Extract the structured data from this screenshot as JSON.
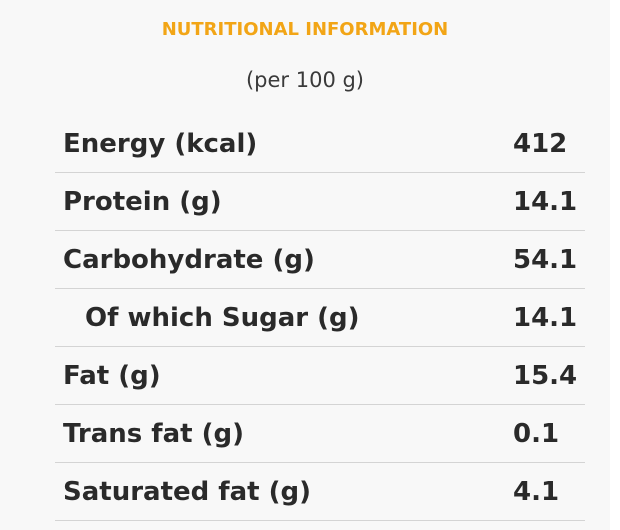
{
  "title": "NUTRITIONAL INFORMATION",
  "subtitle": "(per 100 g)",
  "colors": {
    "title": "#f2a516",
    "text": "#2a2a2a",
    "background": "#f8f8f8",
    "divider": "#d4d4d4"
  },
  "rows": [
    {
      "label": "Energy (kcal)",
      "value": "412",
      "indent": false
    },
    {
      "label": "Protein (g)",
      "value": "14.1",
      "indent": false
    },
    {
      "label": "Carbohydrate (g)",
      "value": "54.1",
      "indent": false
    },
    {
      "label": "Of which Sugar (g)",
      "value": "14.1",
      "indent": true
    },
    {
      "label": "Fat (g)",
      "value": "15.4",
      "indent": false
    },
    {
      "label": "Trans fat (g)",
      "value": "0.1",
      "indent": false
    },
    {
      "label": "Saturated fat (g)",
      "value": "4.1",
      "indent": false
    }
  ]
}
